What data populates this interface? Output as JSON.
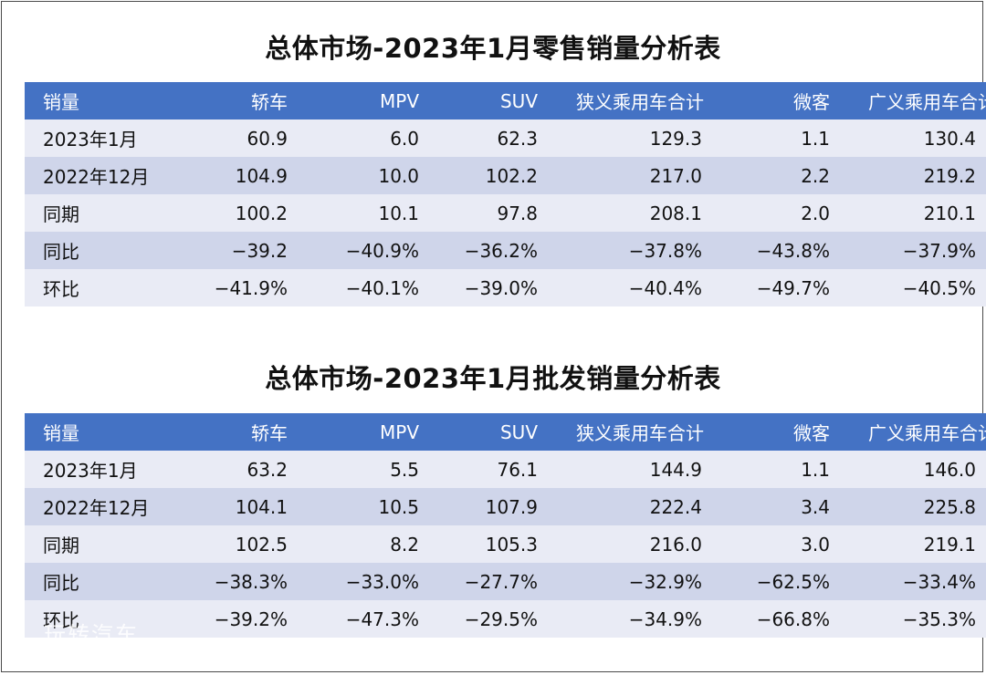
{
  "colors": {
    "header_bg": "#4472c4",
    "row_light": "#e9ebf5",
    "row_dark": "#cfd5ea"
  },
  "retail": {
    "title": "总体市场-2023年1月零售销量分析表",
    "headers": [
      "销量",
      "轿车",
      "MPV",
      "SUV",
      "狭义乘用车合计",
      "微客",
      "广义乘用车合计"
    ],
    "rows": [
      [
        "2023年1月",
        "60.9",
        "6.0",
        "62.3",
        "129.3",
        "1.1",
        "130.4"
      ],
      [
        "2022年12月",
        "104.9",
        "10.0",
        "102.2",
        "217.0",
        "2.2",
        "219.2"
      ],
      [
        "同期",
        "100.2",
        "10.1",
        "97.8",
        "208.1",
        "2.0",
        "210.1"
      ],
      [
        "同比",
        "−39.2",
        "−40.9%",
        "−36.2%",
        "−37.8%",
        "−43.8%",
        "−37.9%"
      ],
      [
        "环比",
        "−41.9%",
        "−40.1%",
        "−39.0%",
        "−40.4%",
        "−49.7%",
        "−40.5%"
      ]
    ]
  },
  "wholesale": {
    "title": "总体市场-2023年1月批发销量分析表",
    "headers": [
      "销量",
      "轿车",
      "MPV",
      "SUV",
      "狭义乘用车合计",
      "微客",
      "广义乘用车合计"
    ],
    "rows": [
      [
        "2023年1月",
        "63.2",
        "5.5",
        "76.1",
        "144.9",
        "1.1",
        "146.0"
      ],
      [
        "2022年12月",
        "104.1",
        "10.5",
        "107.9",
        "222.4",
        "3.4",
        "225.8"
      ],
      [
        "同期",
        "102.5",
        "8.2",
        "105.3",
        "216.0",
        "3.0",
        "219.1"
      ],
      [
        "同比",
        "−38.3%",
        "−33.0%",
        "−27.7%",
        "−32.9%",
        "−62.5%",
        "−33.4%"
      ],
      [
        "环比",
        "−39.2%",
        "−47.3%",
        "−29.5%",
        "−34.9%",
        "−66.8%",
        "−35.3%"
      ]
    ]
  },
  "watermark": "玩转汽车"
}
